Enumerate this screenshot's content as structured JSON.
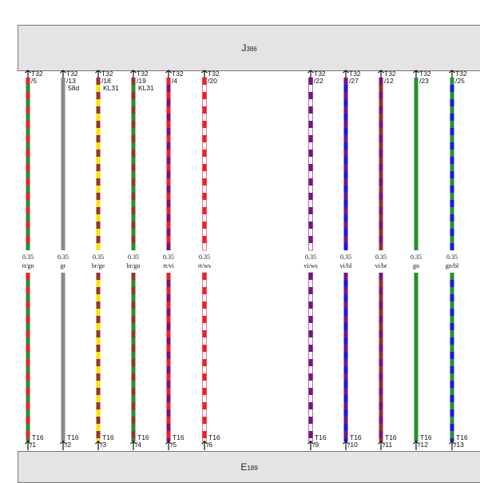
{
  "top_component": {
    "prefix": "J",
    "suffix": "386"
  },
  "bottom_component": {
    "prefix": "E",
    "suffix": "189"
  },
  "colors": {
    "rt": "#e8222a",
    "gn": "#22922a",
    "gr": "#8a8a8a",
    "br": "#9a3030",
    "ge": "#f2e600",
    "vi": "#7a147e",
    "ws": "#ffffff",
    "bl": "#1818e8"
  },
  "wires": [
    {
      "top_conn": "T32",
      "top_pin": "/5",
      "top_extra": "",
      "gauge": "0.35",
      "color_code": "rt/gn",
      "bottom_conn": "T16",
      "bottom_pin": "/1",
      "colors": [
        "rt",
        "gn"
      ]
    },
    {
      "top_conn": "T32",
      "top_pin": "/13",
      "top_extra": "58d",
      "gauge": "0.35",
      "color_code": "gr",
      "bottom_conn": "T16",
      "bottom_pin": "/2",
      "colors": [
        "gr"
      ]
    },
    {
      "top_conn": "T32",
      "top_pin": "/18",
      "top_extra": "KL31",
      "gauge": "0.35",
      "color_code": "br/ge",
      "bottom_conn": "T16",
      "bottom_pin": "/3",
      "colors": [
        "br",
        "ge"
      ]
    },
    {
      "top_conn": "T32",
      "top_pin": "/19",
      "top_extra": "KL31",
      "gauge": "0.35",
      "color_code": "br/gn",
      "bottom_conn": "T16",
      "bottom_pin": "/4",
      "colors": [
        "br",
        "gn"
      ]
    },
    {
      "top_conn": "T32",
      "top_pin": "/4",
      "top_extra": "",
      "gauge": "0.35",
      "color_code": "rt/vi",
      "bottom_conn": "T16",
      "bottom_pin": "/5",
      "colors": [
        "rt",
        "vi"
      ]
    },
    {
      "top_conn": "T32",
      "top_pin": "/20",
      "top_extra": "",
      "gauge": "0.35",
      "color_code": "rt/ws",
      "bottom_conn": "T16",
      "bottom_pin": "/6",
      "colors": [
        "rt",
        "ws"
      ]
    },
    {
      "top_conn": "T32",
      "top_pin": "/22",
      "top_extra": "",
      "gauge": "0.35",
      "color_code": "vi/ws",
      "bottom_conn": "T16",
      "bottom_pin": "/9",
      "colors": [
        "vi",
        "ws"
      ]
    },
    {
      "top_conn": "T32",
      "top_pin": "/27",
      "top_extra": "",
      "gauge": "0.35",
      "color_code": "vi/bl",
      "bottom_conn": "T16",
      "bottom_pin": "/10",
      "colors": [
        "vi",
        "bl"
      ]
    },
    {
      "top_conn": "T32",
      "top_pin": "/12",
      "top_extra": "",
      "gauge": "0.35",
      "color_code": "vi/br",
      "bottom_conn": "T16",
      "bottom_pin": "/11",
      "colors": [
        "vi",
        "br"
      ]
    },
    {
      "top_conn": "T32",
      "top_pin": "/23",
      "top_extra": "",
      "gauge": "0.35",
      "color_code": "gn",
      "bottom_conn": "T16",
      "bottom_pin": "/12",
      "colors": [
        "gn"
      ]
    },
    {
      "top_conn": "T32",
      "top_pin": "/25",
      "top_extra": "",
      "gauge": "0.35",
      "color_code": "gn/bl",
      "bottom_conn": "T16",
      "bottom_pin": "/13",
      "colors": [
        "gn",
        "bl"
      ]
    }
  ]
}
